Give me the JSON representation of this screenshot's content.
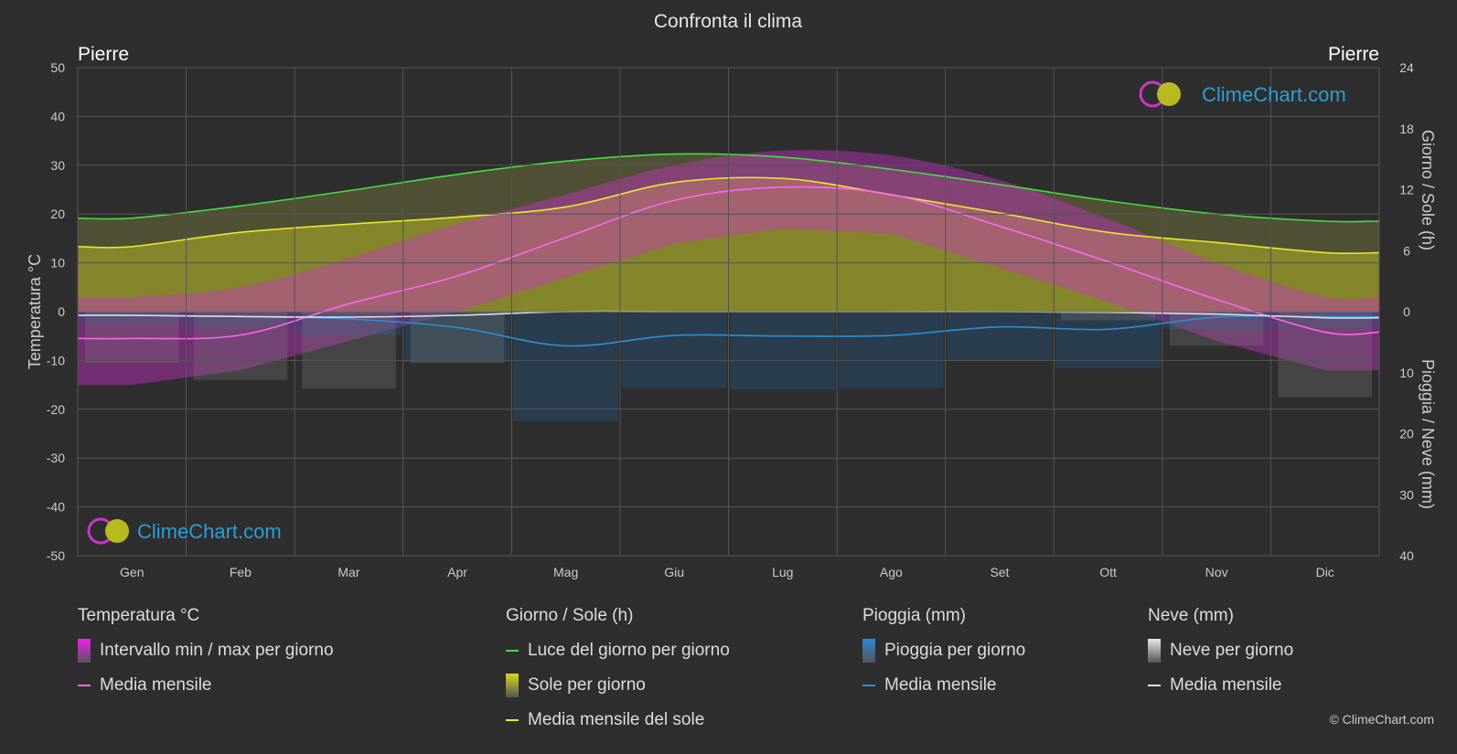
{
  "header": {
    "title": "Confronta il clima",
    "location_left": "Pierre",
    "location_right": "Pierre"
  },
  "brand": {
    "name": "ClimeChart.com",
    "copyright": "© ClimeChart.com"
  },
  "chart_data": {
    "type": "area",
    "title": "Confronta il clima",
    "categories": [
      "Gen",
      "Feb",
      "Mar",
      "Apr",
      "Mag",
      "Giu",
      "Lug",
      "Ago",
      "Set",
      "Ott",
      "Nov",
      "Dic"
    ],
    "axes": {
      "y_left": {
        "label": "Temperatura °C",
        "min": -50,
        "max": 50,
        "ticks": [
          50,
          40,
          30,
          20,
          10,
          0,
          -10,
          -20,
          -30,
          -40,
          -50
        ]
      },
      "y_right_top": {
        "label": "Giorno / Sole (h)",
        "min": 0,
        "max": 24,
        "ticks": [
          24,
          18,
          12,
          6,
          0
        ]
      },
      "y_right_bottom": {
        "label": "Pioggia / Neve (mm)",
        "min": 0,
        "max": 40,
        "ticks": [
          0,
          10,
          20,
          30,
          40
        ]
      }
    },
    "grid": true,
    "series": [
      {
        "name": "Luce del giorno per giorno",
        "unit": "h",
        "color": "#44dd44",
        "values": [
          9.2,
          10.4,
          11.9,
          13.5,
          14.8,
          15.5,
          15.2,
          14.0,
          12.5,
          10.9,
          9.6,
          8.9
        ]
      },
      {
        "name": "Media mensile del sole",
        "unit": "h",
        "color": "#e8e830",
        "values": [
          6.4,
          7.8,
          8.6,
          9.3,
          10.3,
          12.7,
          13.1,
          11.5,
          9.7,
          7.8,
          6.8,
          5.8
        ]
      },
      {
        "name": "Media mensile",
        "group": "Temperatura °C",
        "unit": "°C",
        "color": "#ff66ee",
        "values": [
          -5.5,
          -4.8,
          1.6,
          7.3,
          15.2,
          22.8,
          25.5,
          24.0,
          17.5,
          10.2,
          2.5,
          -4.2
        ]
      },
      {
        "name": "Media mensile",
        "group": "Pioggia (mm)",
        "unit": "mm",
        "color": "#2c8fd6",
        "values": [
          0.6,
          0.8,
          1.2,
          2.6,
          5.6,
          3.9,
          4.0,
          3.9,
          2.5,
          2.9,
          0.9,
          0.8
        ]
      },
      {
        "name": "Media mensile",
        "group": "Neve (mm)",
        "unit": "mm",
        "color": "#e0e0e0",
        "values": [
          0.6,
          0.8,
          0.9,
          0.6,
          0.0,
          0.0,
          0.0,
          0.0,
          0.0,
          0.1,
          0.4,
          1.0
        ]
      }
    ],
    "bands": [
      {
        "name": "Intervallo min / max per giorno",
        "unit": "°C",
        "low": [
          -15,
          -12,
          -6,
          0,
          7,
          14,
          17,
          16,
          9,
          2,
          -6,
          -12
        ],
        "high": [
          3,
          5,
          11,
          18,
          24,
          30,
          33,
          32,
          27,
          19,
          10,
          3
        ]
      }
    ]
  },
  "legend": {
    "groups": [
      {
        "title": "Temperatura °C",
        "items": [
          {
            "label": "Intervallo min / max per giorno",
            "kind": "box",
            "color": "#ee22ee"
          },
          {
            "label": "Media mensile",
            "kind": "line",
            "color": "#ff66ee"
          }
        ]
      },
      {
        "title": "Giorno / Sole (h)",
        "items": [
          {
            "label": "Luce del giorno per giorno",
            "kind": "line",
            "color": "#44dd44"
          },
          {
            "label": "Sole per giorno",
            "kind": "box",
            "color": "#d8d820"
          },
          {
            "label": "Media mensile del sole",
            "kind": "line",
            "color": "#e8e830"
          }
        ]
      },
      {
        "title": "Pioggia (mm)",
        "items": [
          {
            "label": "Pioggia per giorno",
            "kind": "box",
            "color": "#2a8ad8"
          },
          {
            "label": "Media mensile",
            "kind": "line",
            "color": "#2c8fd6"
          }
        ]
      },
      {
        "title": "Neve (mm)",
        "items": [
          {
            "label": "Neve per giorno",
            "kind": "box",
            "color": "#e8e8e8"
          },
          {
            "label": "Media mensile",
            "kind": "line",
            "color": "#e0e0e0"
          }
        ]
      }
    ]
  }
}
